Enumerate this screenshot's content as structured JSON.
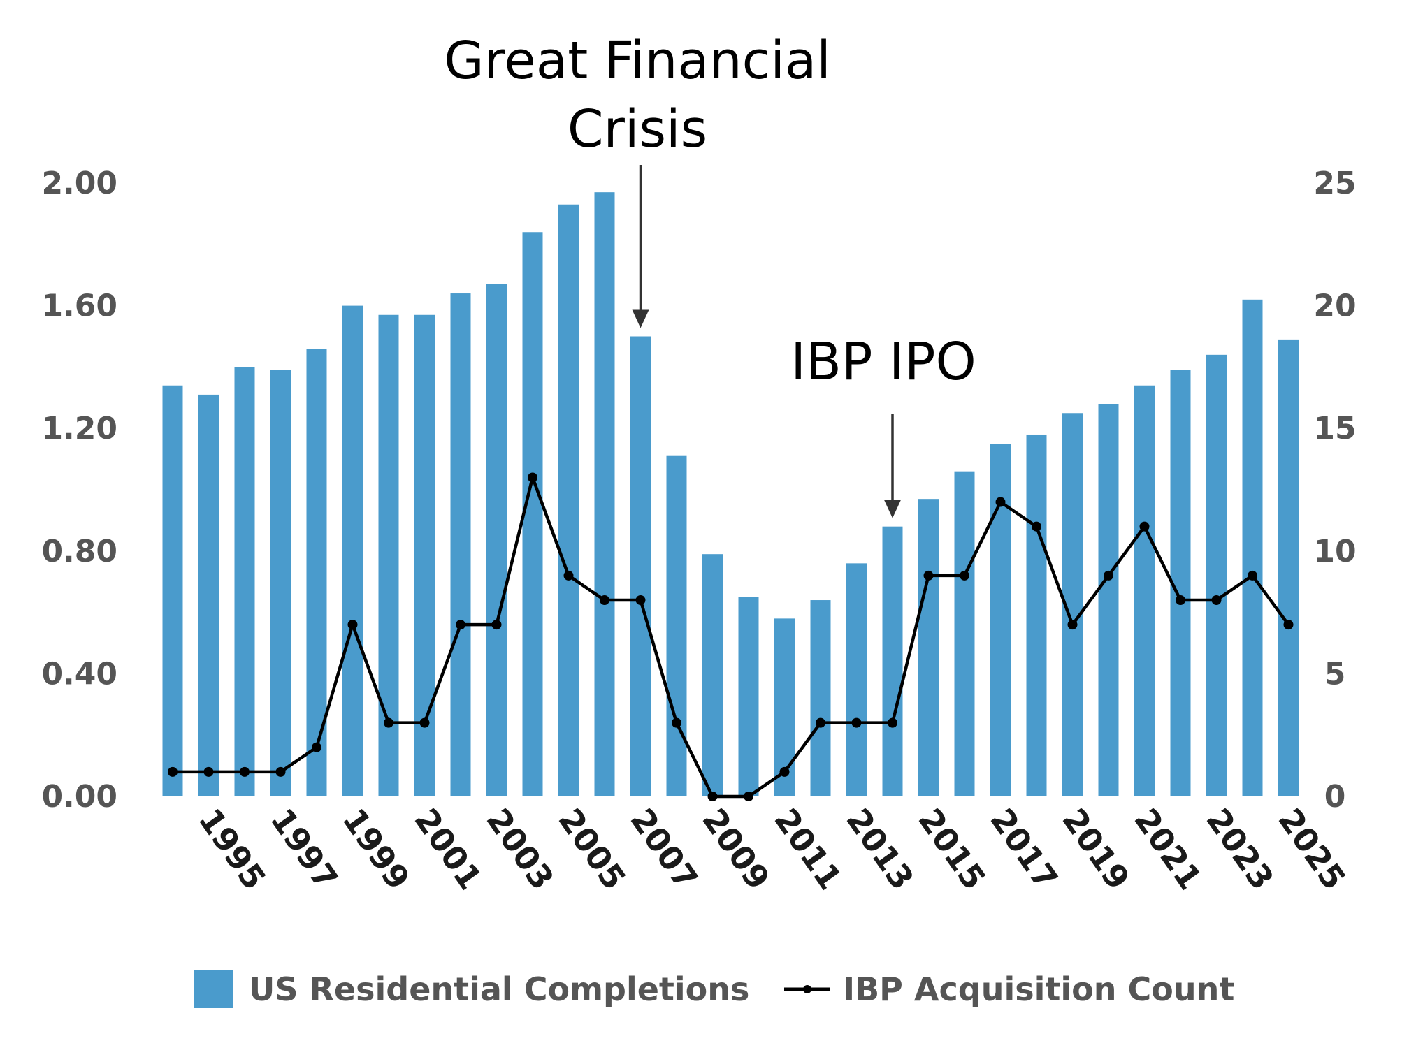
{
  "chart_data": {
    "type": "bar+line",
    "x": [
      1994,
      1995,
      1996,
      1997,
      1998,
      1999,
      2000,
      2001,
      2002,
      2003,
      2004,
      2005,
      2006,
      2007,
      2008,
      2009,
      2010,
      2011,
      2012,
      2013,
      2014,
      2015,
      2016,
      2017,
      2018,
      2019,
      2020,
      2021,
      2022,
      2023,
      2024,
      2025
    ],
    "x_tick_labels": [
      "1995",
      "1997",
      "1999",
      "2001",
      "2003",
      "2005",
      "2007",
      "2009",
      "2011",
      "2013",
      "2015",
      "2017",
      "2019",
      "2021",
      "2023",
      "2025"
    ],
    "series": [
      {
        "name": "US Residential Completions",
        "type": "bar",
        "axis": "left",
        "color": "#4a9bcc",
        "values": [
          1.34,
          1.31,
          1.4,
          1.39,
          1.46,
          1.6,
          1.57,
          1.57,
          1.64,
          1.67,
          1.84,
          1.93,
          1.97,
          1.5,
          1.11,
          0.79,
          0.65,
          0.58,
          0.64,
          0.76,
          0.88,
          0.97,
          1.06,
          1.15,
          1.18,
          1.25,
          1.28,
          1.34,
          1.39,
          1.44,
          1.62,
          1.49
        ]
      },
      {
        "name": "IBP Acquisition Count",
        "type": "line",
        "axis": "right",
        "color": "#000000",
        "values": [
          1,
          1,
          1,
          1,
          2,
          7,
          3,
          3,
          7,
          7,
          13,
          9,
          8,
          8,
          3,
          0,
          0,
          1,
          3,
          3,
          3,
          9,
          9,
          12,
          11,
          7,
          9,
          11,
          8,
          8,
          9,
          7
        ]
      }
    ],
    "y_left": {
      "min": 0,
      "max": 2.0,
      "ticks": [
        "0.00",
        "0.40",
        "0.80",
        "1.20",
        "1.60",
        "2.00"
      ]
    },
    "y_right": {
      "min": 0,
      "max": 25,
      "ticks": [
        "0",
        "5",
        "10",
        "15",
        "20",
        "25"
      ]
    },
    "annotations": [
      {
        "lines": [
          "Great Financial",
          "Crisis"
        ],
        "year": 2007
      },
      {
        "lines": [
          "IBP IPO"
        ],
        "year": 2014
      }
    ],
    "grid": false,
    "legend_position": "bottom"
  },
  "legend": {
    "bar_label": "US Residential Completions",
    "line_label": "IBP Acquisition Count"
  }
}
